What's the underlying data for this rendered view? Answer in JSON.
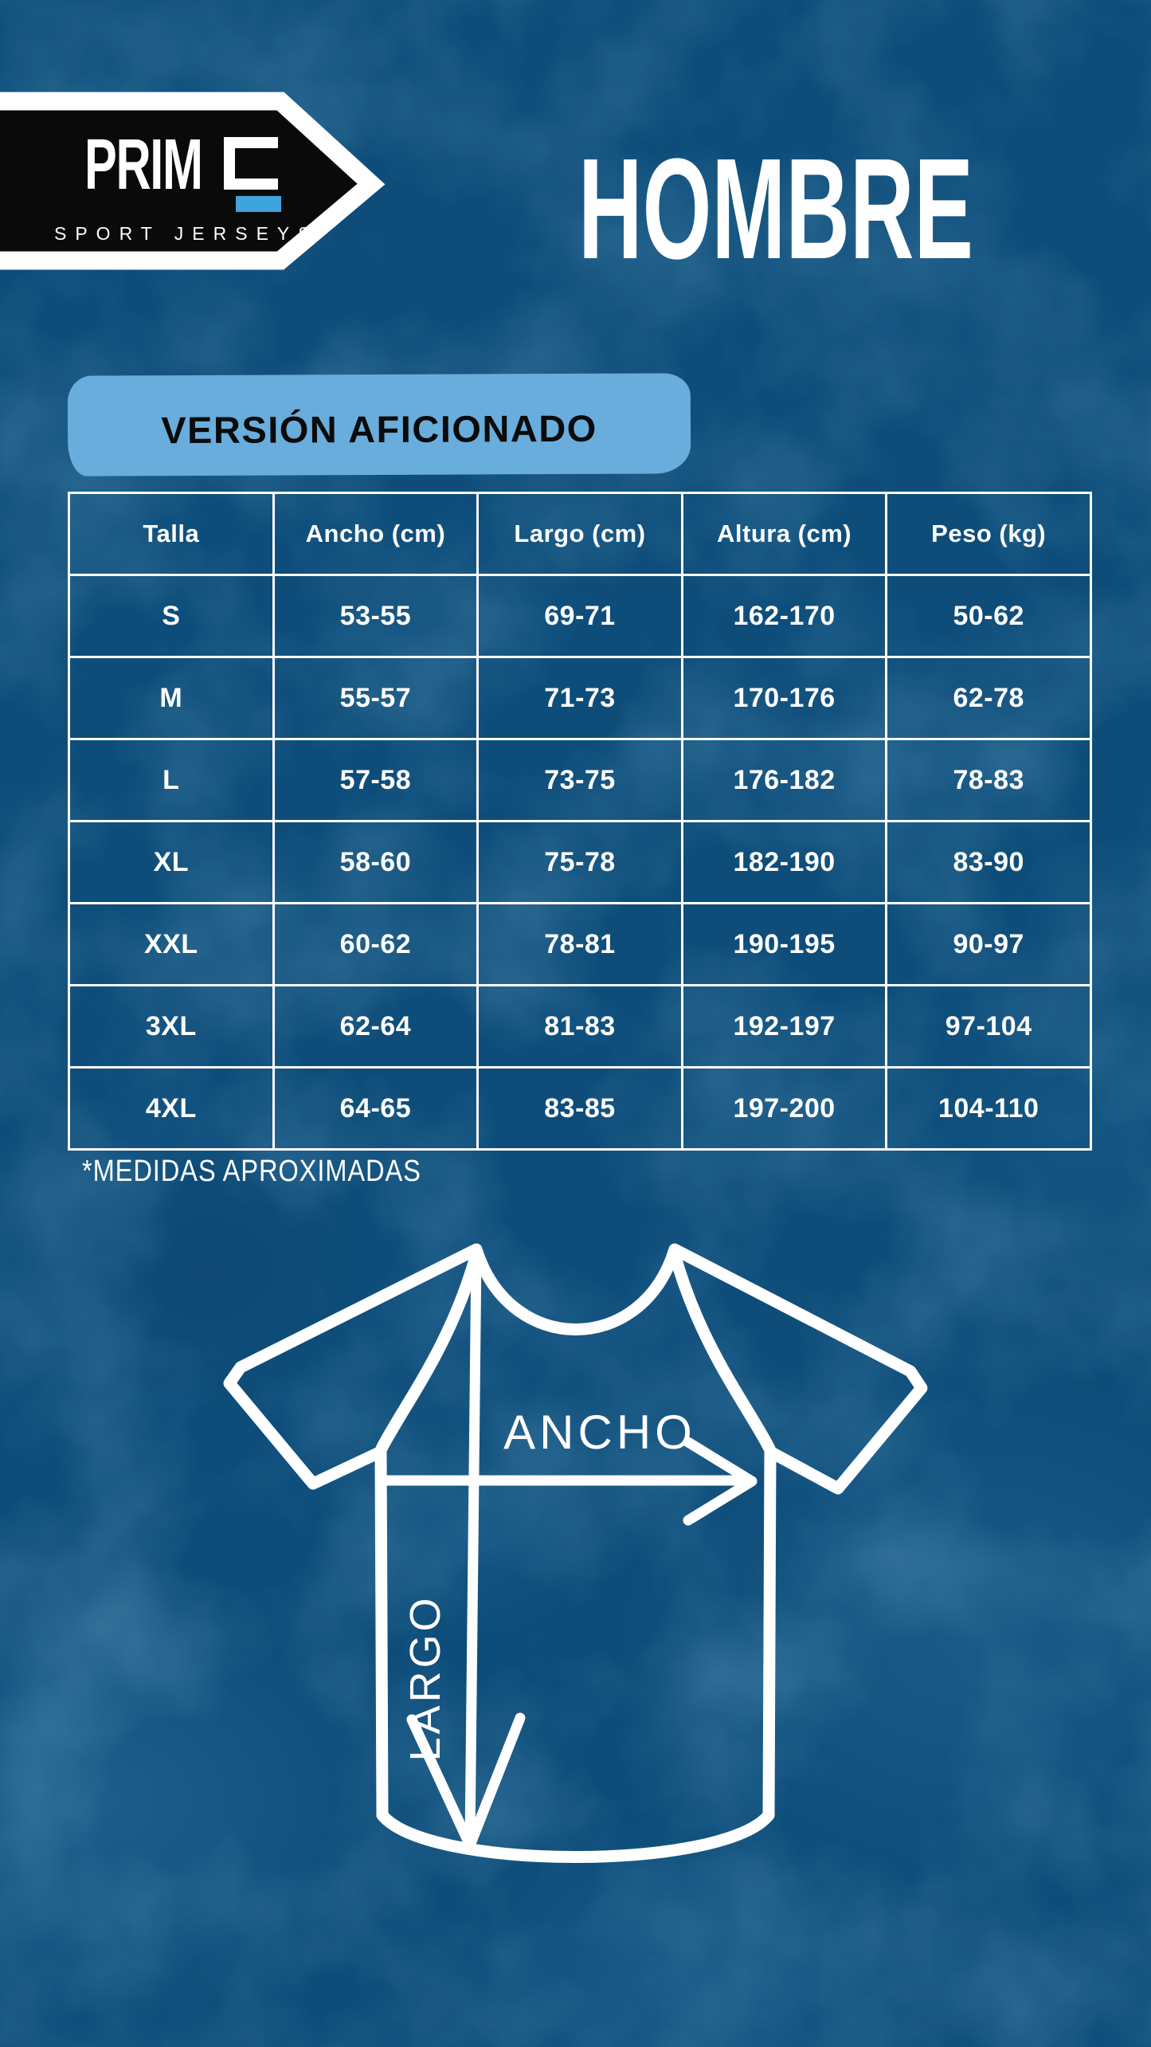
{
  "header": {
    "logo_brand": "PRIME",
    "logo_brand_display": "PRIM",
    "logo_tagline": "SPORT JERSEYS",
    "title": "HOMBRE"
  },
  "version_banner": {
    "label": "VERSIÓN AFICIONADO"
  },
  "size_table": {
    "headers": [
      "Talla",
      "Ancho (cm)",
      "Largo (cm)",
      "Altura (cm)",
      "Peso (kg)"
    ],
    "rows": [
      [
        "S",
        "53-55",
        "69-71",
        "162-170",
        "50-62"
      ],
      [
        "M",
        "55-57",
        "71-73",
        "170-176",
        "62-78"
      ],
      [
        "L",
        "57-58",
        "73-75",
        "176-182",
        "78-83"
      ],
      [
        "XL",
        "58-60",
        "75-78",
        "182-190",
        "83-90"
      ],
      [
        "XXL",
        "60-62",
        "78-81",
        "190-195",
        "90-97"
      ],
      [
        "3XL",
        "62-64",
        "81-83",
        "192-197",
        "97-104"
      ],
      [
        "4XL",
        "64-65",
        "83-85",
        "197-200",
        "104-110"
      ]
    ]
  },
  "footnote": {
    "text": "*MEDIDAS APROXIMADAS"
  },
  "diagram": {
    "width_label": "ANCHO",
    "length_label": "LARGO"
  },
  "colors": {
    "background": "#0e4d7a",
    "logo_black": "#0a0a0a",
    "logo_accent_blue": "#3ea4de",
    "banner_light_blue": "#69addd",
    "banner_text_black": "#0b0b0b",
    "text_white": "#ffffff"
  }
}
